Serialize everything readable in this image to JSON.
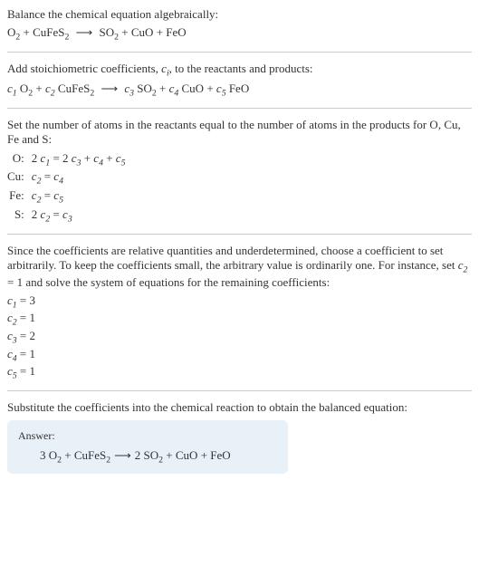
{
  "section1": {
    "intro": "Balance the chemical equation algebraically:",
    "eq_parts": {
      "r1": "O",
      "r1_sub": "2",
      "r2": "CuFeS",
      "r2_sub": "2",
      "arrow": "⟶",
      "p1": "SO",
      "p1_sub": "2",
      "p2": "CuO",
      "p3": "FeO"
    }
  },
  "section2": {
    "intro_pre": "Add stoichiometric coefficients, ",
    "intro_ci": "c",
    "intro_ci_sub": "i",
    "intro_post": ", to the reactants and products:",
    "c1": "c",
    "c1_sub": "1",
    "c2": "c",
    "c2_sub": "2",
    "c3": "c",
    "c3_sub": "3",
    "c4": "c",
    "c4_sub": "4",
    "c5": "c",
    "c5_sub": "5",
    "r1": "O",
    "r1_sub": "2",
    "r2": "CuFeS",
    "r2_sub": "2",
    "arrow": "⟶",
    "p1": "SO",
    "p1_sub": "2",
    "p2": "CuO",
    "p3": "FeO"
  },
  "section3": {
    "intro": "Set the number of atoms in the reactants equal to the number of atoms in the products for O, Cu, Fe and S:",
    "rows": {
      "o_label": "O:",
      "o_eq_1": "2 ",
      "o_c1": "c",
      "o_c1_sub": "1",
      "o_eq_2": " = 2 ",
      "o_c3": "c",
      "o_c3_sub": "3",
      "o_eq_3": " + ",
      "o_c4": "c",
      "o_c4_sub": "4",
      "o_eq_4": " + ",
      "o_c5": "c",
      "o_c5_sub": "5",
      "cu_label": "Cu:",
      "cu_c2": "c",
      "cu_c2_sub": "2",
      "cu_eq": " = ",
      "cu_c4": "c",
      "cu_c4_sub": "4",
      "fe_label": "Fe:",
      "fe_c2": "c",
      "fe_c2_sub": "2",
      "fe_eq": " = ",
      "fe_c5": "c",
      "fe_c5_sub": "5",
      "s_label": "S:",
      "s_eq_1": "2 ",
      "s_c2": "c",
      "s_c2_sub": "2",
      "s_eq_2": " = ",
      "s_c3": "c",
      "s_c3_sub": "3"
    }
  },
  "section4": {
    "intro_1": "Since the coefficients are relative quantities and underdetermined, choose a coefficient to set arbitrarily. To keep the coefficients small, the arbitrary value is ordinarily one. For instance, set ",
    "intro_c": "c",
    "intro_c_sub": "2",
    "intro_2": " = 1 and solve the system of equations for the remaining coefficients:",
    "c1_l": "c",
    "c1_sub": "1",
    "c1_v": " = 3",
    "c2_l": "c",
    "c2_sub": "2",
    "c2_v": " = 1",
    "c3_l": "c",
    "c3_sub": "3",
    "c3_v": " = 2",
    "c4_l": "c",
    "c4_sub": "4",
    "c4_v": " = 1",
    "c5_l": "c",
    "c5_sub": "5",
    "c5_v": " = 1"
  },
  "section5": {
    "intro": "Substitute the coefficients into the chemical reaction to obtain the balanced equation:"
  },
  "answer": {
    "label": "Answer:",
    "n1": "3 ",
    "r1": "O",
    "r1_sub": "2",
    "plus1": " + ",
    "r2": "CuFeS",
    "r2_sub": "2",
    "arrow": "⟶",
    "n3": "2 ",
    "p1": "SO",
    "p1_sub": "2",
    "plus2": " + ",
    "p2": "CuO",
    "plus3": " + ",
    "p3": "FeO"
  },
  "colors": {
    "text": "#333333",
    "hr": "#cccccc",
    "answer_bg": "#e8f0f8"
  }
}
